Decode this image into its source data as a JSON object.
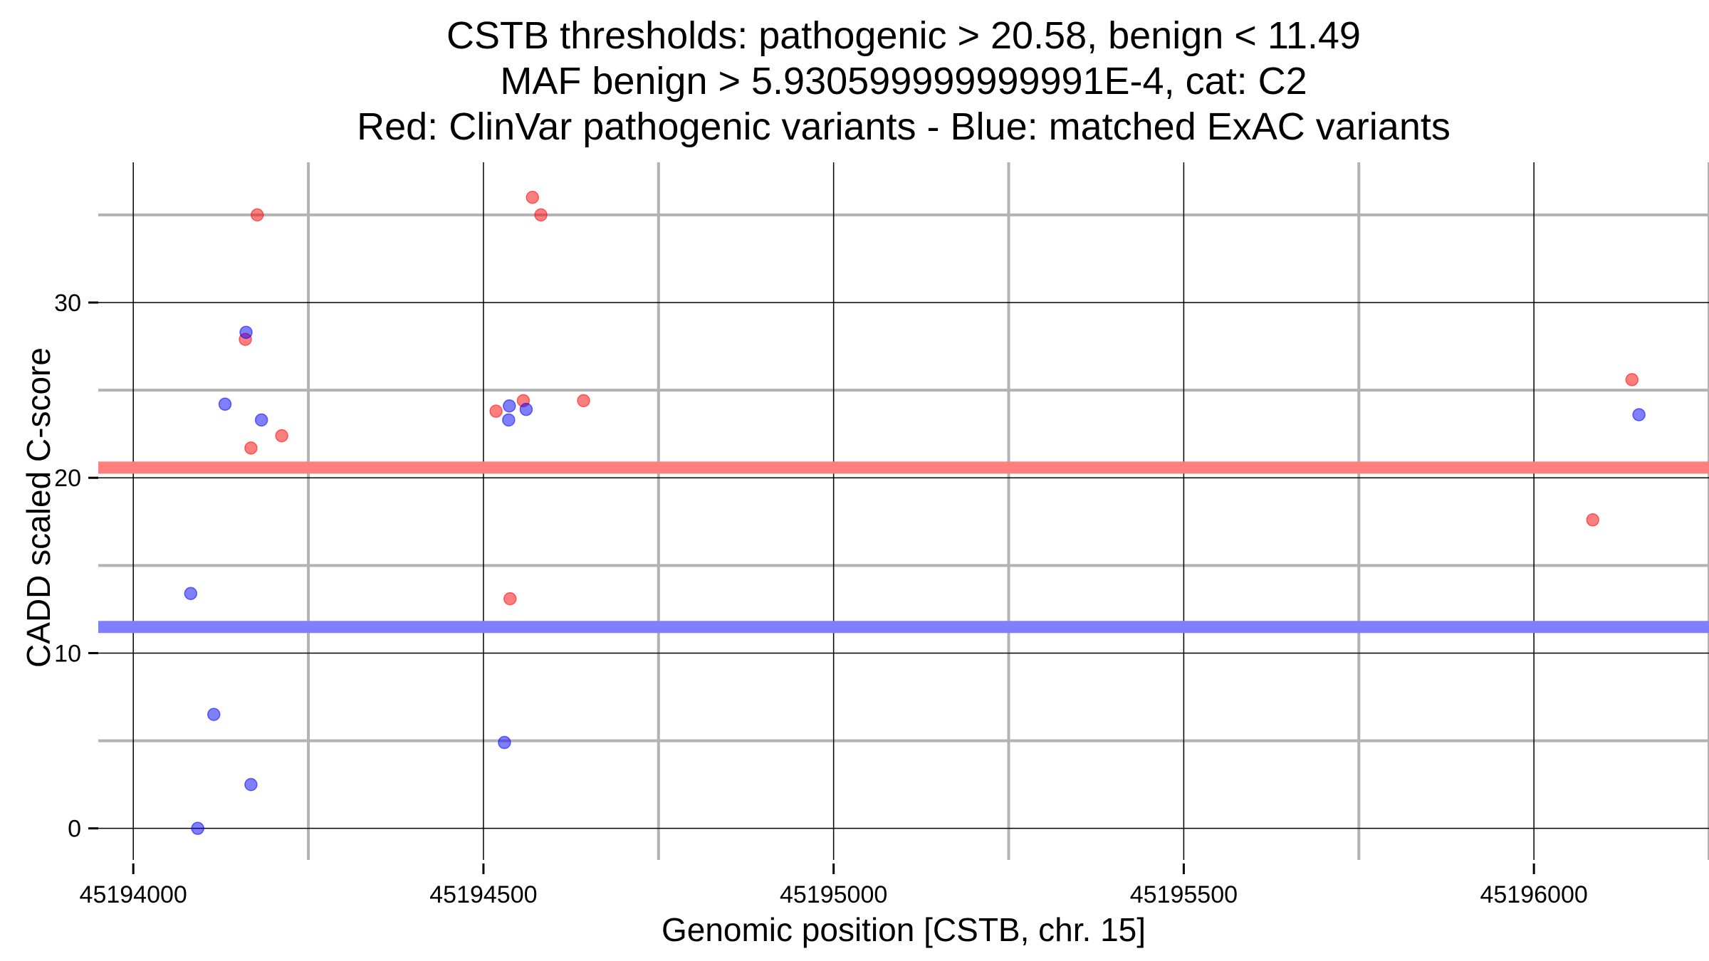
{
  "chart_data": {
    "type": "scatter",
    "title_lines": [
      "CSTB thresholds: pathogenic > 20.58, benign < 11.49",
      "MAF benign > 5.930599999999991E-4, cat: C2",
      "Red: ClinVar pathogenic variants - Blue: matched ExAC variants"
    ],
    "xlabel": "Genomic position [CSTB, chr. 15]",
    "ylabel": "CADD scaled C-score",
    "xlim": [
      45193950,
      45196250
    ],
    "ylim": [
      -1.8,
      38
    ],
    "x_ticks": [
      45194000,
      45194500,
      45195000,
      45195500,
      45196000
    ],
    "x_tick_labels": [
      "45194000",
      "45194500",
      "45195000",
      "45195500",
      "45196000"
    ],
    "x_minor_grid": [
      45194250,
      45194750,
      45195250,
      45195750,
      45196250
    ],
    "y_ticks": [
      0,
      10,
      20,
      30
    ],
    "y_tick_labels": [
      "0",
      "10",
      "20",
      "30"
    ],
    "y_minor_grid": [
      5,
      15,
      25,
      35
    ],
    "grid": true,
    "thresholds": [
      {
        "name": "pathogenic threshold",
        "value": 20.58,
        "color": "#ff7f7f"
      },
      {
        "name": "benign threshold",
        "value": 11.49,
        "color": "#7f7fff"
      }
    ],
    "series": [
      {
        "name": "ClinVar pathogenic variants",
        "color": "#ff0000",
        "points": [
          {
            "x": 45194177,
            "y": 35.0
          },
          {
            "x": 45194160,
            "y": 27.9
          },
          {
            "x": 45194168,
            "y": 21.7
          },
          {
            "x": 45194212,
            "y": 22.4
          },
          {
            "x": 45194570,
            "y": 36.0
          },
          {
            "x": 45194582,
            "y": 35.0
          },
          {
            "x": 45194518,
            "y": 23.8
          },
          {
            "x": 45194557,
            "y": 24.4
          },
          {
            "x": 45194643,
            "y": 24.4
          },
          {
            "x": 45194538,
            "y": 13.1
          },
          {
            "x": 45196140,
            "y": 25.6
          },
          {
            "x": 45196084,
            "y": 17.6
          }
        ]
      },
      {
        "name": "matched ExAC variants",
        "color": "#0000ff",
        "points": [
          {
            "x": 45194161,
            "y": 28.3
          },
          {
            "x": 45194131,
            "y": 24.2
          },
          {
            "x": 45194183,
            "y": 23.3
          },
          {
            "x": 45194082,
            "y": 13.4
          },
          {
            "x": 45194115,
            "y": 6.5
          },
          {
            "x": 45194168,
            "y": 2.5
          },
          {
            "x": 45194092,
            "y": 0.0
          },
          {
            "x": 45194537,
            "y": 24.1
          },
          {
            "x": 45194561,
            "y": 23.9
          },
          {
            "x": 45194536,
            "y": 23.3
          },
          {
            "x": 45194530,
            "y": 4.9
          },
          {
            "x": 45196150,
            "y": 23.6
          }
        ]
      }
    ]
  }
}
